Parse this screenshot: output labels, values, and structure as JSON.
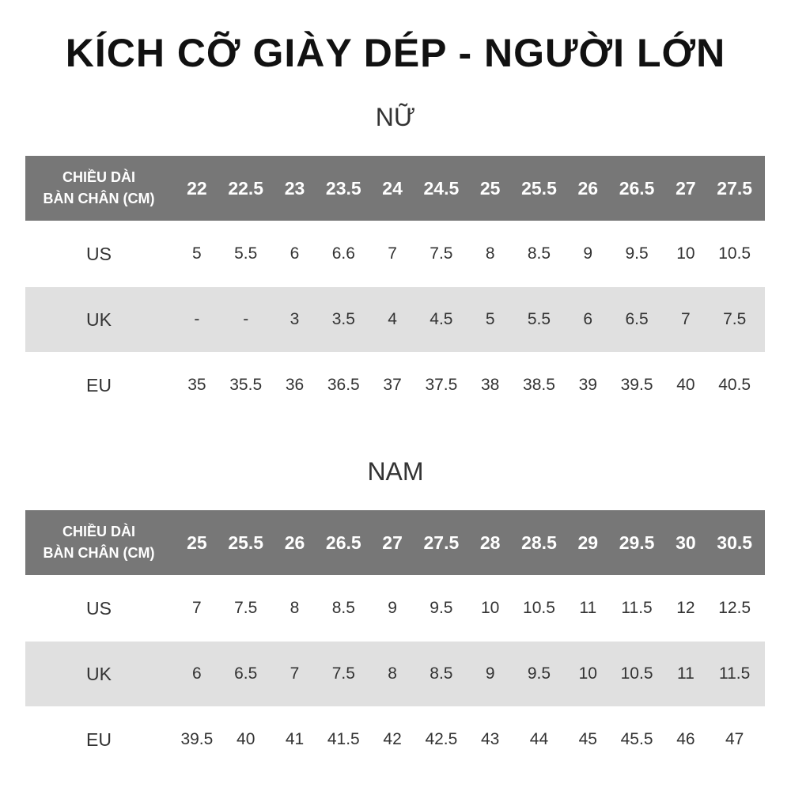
{
  "title": "KÍCH CỠ GIÀY DÉP - NGƯỜI LỚN",
  "colors": {
    "header_bg": "#777777",
    "alt_row_bg": "#e0e0e0",
    "text": "#333333"
  },
  "tables": [
    {
      "section": "NỮ",
      "header_label_line1": "CHIỀU DÀI",
      "header_label_line2": "BÀN CHÂN (CM)",
      "foot_lengths": [
        "22",
        "22.5",
        "23",
        "23.5",
        "24",
        "24.5",
        "25",
        "25.5",
        "26",
        "26.5",
        "27",
        "27.5"
      ],
      "rows": [
        {
          "label": "US",
          "values": [
            "5",
            "5.5",
            "6",
            "6.6",
            "7",
            "7.5",
            "8",
            "8.5",
            "9",
            "9.5",
            "10",
            "10.5"
          ]
        },
        {
          "label": "UK",
          "values": [
            "-",
            "-",
            "3",
            "3.5",
            "4",
            "4.5",
            "5",
            "5.5",
            "6",
            "6.5",
            "7",
            "7.5"
          ]
        },
        {
          "label": "EU",
          "values": [
            "35",
            "35.5",
            "36",
            "36.5",
            "37",
            "37.5",
            "38",
            "38.5",
            "39",
            "39.5",
            "40",
            "40.5"
          ]
        }
      ]
    },
    {
      "section": "NAM",
      "header_label_line1": "CHIỀU DÀI",
      "header_label_line2": "BÀN CHÂN (CM)",
      "foot_lengths": [
        "25",
        "25.5",
        "26",
        "26.5",
        "27",
        "27.5",
        "28",
        "28.5",
        "29",
        "29.5",
        "30",
        "30.5"
      ],
      "rows": [
        {
          "label": "US",
          "values": [
            "7",
            "7.5",
            "8",
            "8.5",
            "9",
            "9.5",
            "10",
            "10.5",
            "11",
            "11.5",
            "12",
            "12.5"
          ]
        },
        {
          "label": "UK",
          "values": [
            "6",
            "6.5",
            "7",
            "7.5",
            "8",
            "8.5",
            "9",
            "9.5",
            "10",
            "10.5",
            "11",
            "11.5"
          ]
        },
        {
          "label": "EU",
          "values": [
            "39.5",
            "40",
            "41",
            "41.5",
            "42",
            "42.5",
            "43",
            "44",
            "45",
            "45.5",
            "46",
            "47"
          ]
        }
      ]
    }
  ]
}
